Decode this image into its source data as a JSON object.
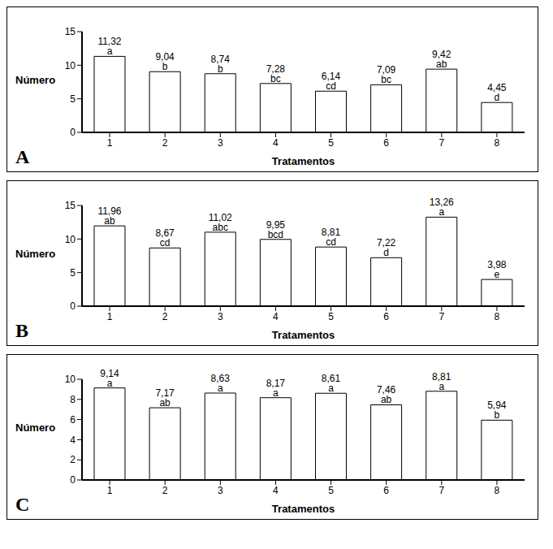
{
  "chart_data": [
    {
      "type": "bar",
      "title": "A",
      "x_label": "Tratamentos",
      "y_label": "Número",
      "categories": [
        "1",
        "2",
        "3",
        "4",
        "5",
        "6",
        "7",
        "8"
      ],
      "values": [
        11.32,
        9.04,
        8.74,
        7.28,
        6.14,
        7.09,
        9.42,
        4.45
      ],
      "value_labels": [
        "11,32",
        "9,04",
        "8,74",
        "7,28",
        "6,14",
        "7,09",
        "9,42",
        "4,45"
      ],
      "letters": [
        "a",
        "b",
        "b",
        "bc",
        "cd",
        "bc",
        "ab",
        "d"
      ],
      "color": "#ffffff",
      "ylim": [
        0,
        15
      ],
      "yticks": [
        0,
        5,
        10,
        15
      ],
      "grid": false,
      "data_labels": true
    },
    {
      "type": "bar",
      "title": "B",
      "x_label": "Tratamentos",
      "y_label": "Número",
      "categories": [
        "1",
        "2",
        "3",
        "4",
        "5",
        "6",
        "7",
        "8"
      ],
      "values": [
        11.96,
        8.67,
        11.02,
        9.95,
        8.81,
        7.22,
        13.26,
        3.98
      ],
      "value_labels": [
        "11,96",
        "8,67",
        "11,02",
        "9,95",
        "8,81",
        "7,22",
        "13,26",
        "3,98"
      ],
      "letters": [
        "ab",
        "cd",
        "abc",
        "bcd",
        "cd",
        "d",
        "a",
        "e"
      ],
      "color": "#ffffff",
      "ylim": [
        0,
        15
      ],
      "yticks": [
        0,
        5,
        10,
        15
      ],
      "grid": false,
      "data_labels": true
    },
    {
      "type": "bar",
      "title": "C",
      "x_label": "Tratamentos",
      "y_label": "Número",
      "categories": [
        "1",
        "2",
        "3",
        "4",
        "5",
        "6",
        "7",
        "8"
      ],
      "values": [
        9.14,
        7.17,
        8.63,
        8.17,
        8.61,
        7.46,
        8.81,
        5.94
      ],
      "value_labels": [
        "9,14",
        "7,17",
        "8,63",
        "8,17",
        "8,61",
        "7,46",
        "8,81",
        "5,94"
      ],
      "letters": [
        "a",
        "ab",
        "a",
        "a",
        "a",
        "ab",
        "a",
        "b"
      ],
      "color": "#ffffff",
      "ylim": [
        0,
        10
      ],
      "yticks": [
        0,
        2,
        4,
        6,
        8,
        10
      ],
      "grid": false,
      "data_labels": true
    }
  ]
}
